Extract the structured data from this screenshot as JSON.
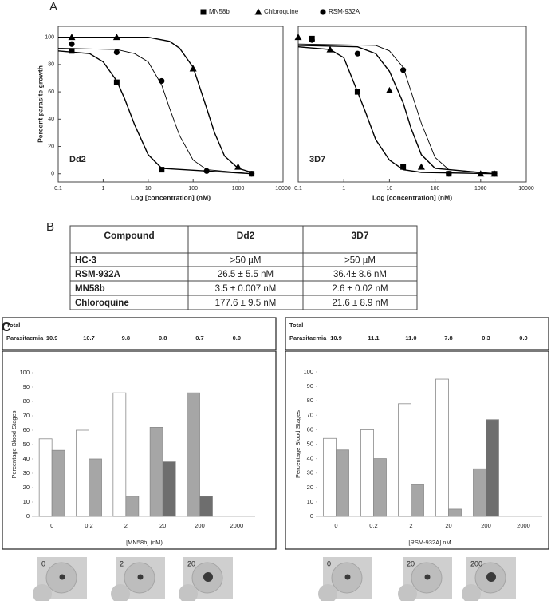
{
  "panels": {
    "a": "A",
    "b": "B",
    "c": "C"
  },
  "chart_data": [
    {
      "type": "line",
      "xscale": "log",
      "xlim": [
        0.1,
        10000
      ],
      "xticks": [
        0.1,
        1,
        10,
        100,
        1000,
        10000
      ],
      "ylim": [
        -6,
        108
      ],
      "yticks": [
        0,
        20,
        40,
        60,
        80,
        100
      ],
      "xlabel": "Log [concentration] (nM)",
      "ylabel": "Percent parasite growth",
      "annotation": "Dd2",
      "series": [
        {
          "name": "MN58b",
          "marker": "square",
          "color": "#000000",
          "x": [
            0.2,
            2,
            20,
            2000
          ],
          "values": [
            90,
            67,
            3,
            0
          ],
          "curve_x": [
            0.1,
            0.5,
            1,
            2,
            3,
            5,
            10,
            20,
            2000
          ],
          "curve_y": [
            90,
            88,
            82,
            68,
            55,
            36,
            14,
            4,
            0
          ]
        },
        {
          "name": "Chloroquine",
          "marker": "triangle",
          "color": "#000000",
          "x": [
            0.2,
            2,
            100,
            1000
          ],
          "values": [
            100,
            100,
            77,
            5
          ],
          "curve_x": [
            0.1,
            10,
            30,
            50,
            100,
            200,
            300,
            500,
            1000,
            2000
          ],
          "curve_y": [
            100,
            100,
            97,
            92,
            78,
            48,
            30,
            13,
            4,
            1
          ]
        },
        {
          "name": "RSM-932A",
          "marker": "circle",
          "color": "#000000",
          "x": [
            0.2,
            2,
            20,
            200,
            2000
          ],
          "values": [
            95,
            89,
            68,
            2,
            0
          ],
          "curve_x": [
            0.1,
            2,
            5,
            10,
            20,
            30,
            50,
            100,
            200,
            2000
          ],
          "curve_y": [
            92,
            91,
            88,
            82,
            65,
            48,
            28,
            10,
            3,
            0
          ]
        }
      ]
    },
    {
      "type": "line",
      "xscale": "log",
      "xlim": [
        0.1,
        10000
      ],
      "xticks": [
        0.1,
        1,
        10,
        100,
        1000,
        10000
      ],
      "ylim": [
        -6,
        108
      ],
      "xlabel": "Log [concentration] (nM)",
      "annotation": "3D7",
      "series": [
        {
          "marker": "square",
          "color": "#000000",
          "x": [
            0.2,
            2,
            20,
            200,
            2000
          ],
          "values": [
            99,
            60,
            5,
            0,
            0
          ],
          "curve_x": [
            0.1,
            0.5,
            1,
            2,
            3,
            5,
            10,
            20,
            50,
            2000
          ],
          "curve_y": [
            93,
            91,
            85,
            60,
            45,
            25,
            10,
            3,
            1,
            0
          ]
        },
        {
          "marker": "triangle",
          "color": "#000000",
          "x": [
            0.1,
            0.5,
            10,
            50,
            1000,
            2000
          ],
          "values": [
            100,
            91,
            61,
            5,
            0,
            0
          ],
          "curve_x": [
            0.1,
            2,
            5,
            10,
            20,
            30,
            50,
            100,
            2000
          ],
          "curve_y": [
            94,
            93,
            88,
            75,
            52,
            33,
            14,
            4,
            0
          ]
        },
        {
          "marker": "circle",
          "color": "#000000",
          "x": [
            0.2,
            2,
            20,
            200,
            2000
          ],
          "values": [
            98,
            88,
            76,
            0,
            0
          ],
          "curve_x": [
            0.1,
            5,
            10,
            20,
            30,
            50,
            100,
            200,
            2000
          ],
          "curve_y": [
            95,
            94,
            90,
            78,
            60,
            37,
            12,
            3,
            0
          ]
        }
      ]
    },
    {
      "type": "bar",
      "categories": [
        "0",
        "0.2",
        "2",
        "20",
        "200",
        "2000"
      ],
      "ylim": [
        0,
        100
      ],
      "yticks": [
        0,
        10,
        20,
        30,
        40,
        50,
        60,
        70,
        80,
        90,
        100
      ],
      "xlabel": "[MN58b] (nM)",
      "ylabel": "Percentage Blood Stages",
      "parasitaemia_label": [
        "Total",
        "Parasitaemia"
      ],
      "parasitaemia": [
        "10.9",
        "10.7",
        "9.8",
        "0.8",
        "0.7",
        "0.0"
      ],
      "series": [
        {
          "color": "#ffffff",
          "values": [
            54,
            60,
            86,
            null,
            null,
            null
          ]
        },
        {
          "color": "#a6a6a6",
          "values": [
            46,
            40,
            14,
            62,
            86,
            null
          ]
        },
        {
          "color": "#6e6e6e",
          "values": [
            null,
            null,
            null,
            38,
            14,
            null
          ]
        }
      ]
    },
    {
      "type": "bar",
      "categories": [
        "0",
        "0.2",
        "2",
        "20",
        "200",
        "2000"
      ],
      "ylim": [
        0,
        100
      ],
      "yticks": [
        0,
        10,
        20,
        30,
        40,
        50,
        60,
        70,
        80,
        90,
        100
      ],
      "xlabel": "[RSM-932A] nM",
      "ylabel": "Percentage Blood Stages",
      "parasitaemia_label": [
        "Total",
        "Parasitaemia"
      ],
      "parasitaemia": [
        "10.9",
        "11.1",
        "11.0",
        "7.8",
        "0.3",
        "0.0"
      ],
      "series": [
        {
          "color": "#ffffff",
          "values": [
            54,
            60,
            78,
            95,
            null,
            null
          ]
        },
        {
          "color": "#a6a6a6",
          "values": [
            46,
            40,
            22,
            5,
            33,
            null
          ]
        },
        {
          "color": "#6e6e6e",
          "values": [
            null,
            null,
            null,
            null,
            67,
            null
          ]
        }
      ]
    }
  ],
  "table": {
    "header": [
      "Compound",
      "Dd2",
      "3D7"
    ],
    "rows": [
      [
        "HC-3",
        ">50 µM",
        ">50 µM"
      ],
      [
        "RSM-932A",
        "26.5 ± 5.5 nM",
        "36.4± 8.6 nM"
      ],
      [
        "MN58b",
        "3.5 ± 0.007 nM",
        "2.6 ± 0.02 nM"
      ],
      [
        "Chloroquine",
        "177.6 ± 9.5 nM",
        "21.6 ± 8.9 nM"
      ]
    ]
  },
  "micrographs": [
    [
      "0",
      "2",
      "20"
    ],
    [
      "0",
      "20",
      "200"
    ]
  ]
}
